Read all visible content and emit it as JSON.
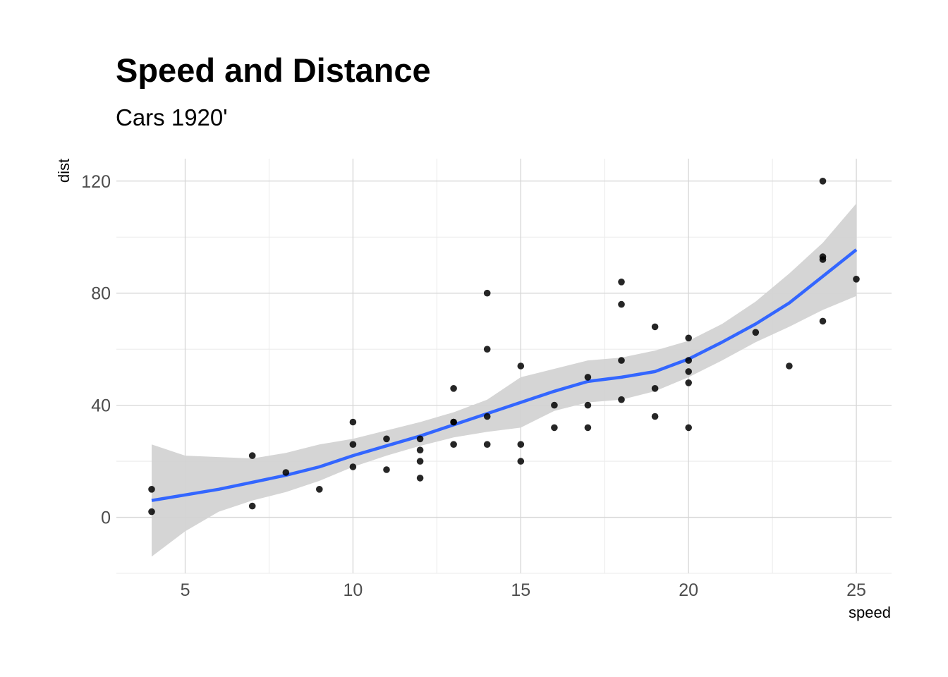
{
  "chart_data": {
    "type": "scatter",
    "title": "Speed and Distance",
    "subtitle": "Cars 1920'",
    "xlabel": "speed",
    "ylabel": "dist",
    "xlim": [
      2.95,
      26.05
    ],
    "ylim": [
      -20,
      128
    ],
    "x_ticks": [
      5,
      10,
      15,
      20,
      25
    ],
    "y_ticks": [
      0,
      40,
      80,
      120
    ],
    "grid": true,
    "points": [
      [
        4,
        2
      ],
      [
        4,
        10
      ],
      [
        7,
        4
      ],
      [
        7,
        22
      ],
      [
        8,
        16
      ],
      [
        9,
        10
      ],
      [
        10,
        18
      ],
      [
        10,
        26
      ],
      [
        10,
        34
      ],
      [
        11,
        17
      ],
      [
        11,
        28
      ],
      [
        12,
        14
      ],
      [
        12,
        20
      ],
      [
        12,
        24
      ],
      [
        12,
        28
      ],
      [
        13,
        26
      ],
      [
        13,
        34
      ],
      [
        13,
        34
      ],
      [
        13,
        46
      ],
      [
        14,
        26
      ],
      [
        14,
        36
      ],
      [
        14,
        60
      ],
      [
        14,
        80
      ],
      [
        15,
        20
      ],
      [
        15,
        26
      ],
      [
        15,
        54
      ],
      [
        16,
        32
      ],
      [
        16,
        40
      ],
      [
        17,
        32
      ],
      [
        17,
        40
      ],
      [
        17,
        50
      ],
      [
        18,
        42
      ],
      [
        18,
        56
      ],
      [
        18,
        76
      ],
      [
        18,
        84
      ],
      [
        19,
        36
      ],
      [
        19,
        46
      ],
      [
        19,
        68
      ],
      [
        20,
        32
      ],
      [
        20,
        48
      ],
      [
        20,
        52
      ],
      [
        20,
        56
      ],
      [
        20,
        64
      ],
      [
        22,
        66
      ],
      [
        23,
        54
      ],
      [
        24,
        70
      ],
      [
        24,
        92
      ],
      [
        24,
        93
      ],
      [
        24,
        120
      ],
      [
        25,
        85
      ]
    ],
    "smooth": {
      "name": "loess fit",
      "color": "#3366ff",
      "band_color": "#d3d3d3",
      "x": [
        4,
        5,
        6,
        7,
        8,
        9,
        10,
        11,
        12,
        13,
        14,
        15,
        16,
        17,
        18,
        19,
        20,
        21,
        22,
        23,
        24,
        25
      ],
      "y": [
        6,
        8,
        10,
        12.5,
        15,
        18,
        22,
        25.5,
        29,
        33,
        37,
        41,
        45,
        48.5,
        50,
        52,
        56.5,
        62.5,
        69,
        76.5,
        86,
        95.5
      ],
      "lower": [
        -14,
        -5,
        2,
        6,
        9,
        13,
        18,
        22,
        25.5,
        28.5,
        30.5,
        32,
        38,
        41,
        42,
        45,
        50,
        56,
        62.5,
        68,
        74,
        79
      ],
      "upper": [
        26,
        22,
        21.5,
        21,
        23,
        26,
        28,
        31,
        34,
        37.5,
        42,
        50,
        53,
        56,
        57,
        59.5,
        63,
        69,
        77,
        87,
        98,
        112
      ]
    }
  }
}
